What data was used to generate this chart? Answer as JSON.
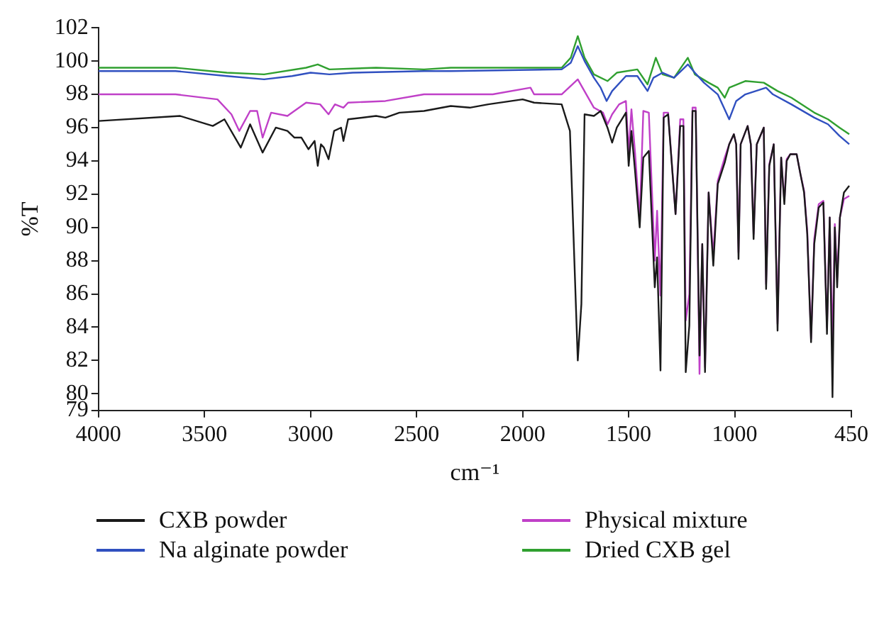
{
  "chart_data": {
    "type": "line",
    "xlabel": "cm⁻¹",
    "ylabel": "%T",
    "xlim": [
      4000,
      450
    ],
    "xticks": [
      4000,
      3500,
      3000,
      2500,
      2000,
      1500,
      1000,
      450
    ],
    "ylim": [
      79,
      102
    ],
    "yticks": [
      79,
      80,
      82,
      84,
      86,
      88,
      90,
      92,
      94,
      96,
      98,
      100,
      102
    ],
    "grid": false,
    "legend": "bottom",
    "marker": "none",
    "line_style": "solid",
    "series": [
      {
        "name": "CXB powder",
        "color": "#1a1a1a",
        "x": [
          4000,
          3615,
          3461,
          3406,
          3329,
          3285,
          3226,
          3164,
          3109,
          3076,
          3043,
          3010,
          2981,
          2966,
          2951,
          2937,
          2915,
          2889,
          2856,
          2845,
          2823,
          2691,
          2647,
          2581,
          2465,
          2339,
          2249,
          2162,
          2000,
          1946,
          1816,
          1777,
          1740,
          1723,
          1708,
          1664,
          1632,
          1600,
          1578,
          1556,
          1513,
          1500,
          1487,
          1470,
          1448,
          1431,
          1405,
          1377,
          1366,
          1350,
          1335,
          1314,
          1279,
          1257,
          1242,
          1231,
          1214,
          1199,
          1184,
          1166,
          1153,
          1140,
          1123,
          1101,
          1080,
          1047,
          1026,
          1004,
          993,
          982,
          972,
          939,
          924,
          911,
          896,
          863,
          852,
          837,
          816,
          798,
          781,
          766,
          755,
          738,
          708,
          690,
          673,
          658,
          640,
          625,
          604,
          582,
          565,
          552,
          539,
          528,
          517,
          504,
          485,
          460
        ],
        "values": [
          96.4,
          96.7,
          96.1,
          96.5,
          94.8,
          96.2,
          94.5,
          96.0,
          95.8,
          95.4,
          95.4,
          94.7,
          95.2,
          93.7,
          95.0,
          94.8,
          94.1,
          95.8,
          96.0,
          95.2,
          96.5,
          96.7,
          96.6,
          96.9,
          97.0,
          97.3,
          97.2,
          97.4,
          97.7,
          97.5,
          97.4,
          95.8,
          82.0,
          85.4,
          96.8,
          96.7,
          97.0,
          96.0,
          95.1,
          96.0,
          96.9,
          93.7,
          95.8,
          93.4,
          90.0,
          94.2,
          94.6,
          86.4,
          88.2,
          81.4,
          96.6,
          96.8,
          90.8,
          96.1,
          96.1,
          81.3,
          84.1,
          97.0,
          97.0,
          82.3,
          89.0,
          81.3,
          92.1,
          87.7,
          92.6,
          93.9,
          95.0,
          95.6,
          95.0,
          88.1,
          95.0,
          96.1,
          95.0,
          89.3,
          95.0,
          96.0,
          86.3,
          93.7,
          95.0,
          83.8,
          94.2,
          91.4,
          94.0,
          94.4,
          94.4,
          93.2,
          92.1,
          89.6,
          83.1,
          89.0,
          91.2,
          91.5,
          83.6,
          90.6,
          79.8,
          90.0,
          86.4,
          90.6,
          92.1,
          92.5
        ]
      },
      {
        "name": "Physical mixture",
        "color": "#c040c8",
        "x": [
          4000,
          3637,
          3439,
          3373,
          3336,
          3285,
          3252,
          3226,
          3186,
          3109,
          3087,
          3021,
          2955,
          2915,
          2885,
          2845,
          2823,
          2647,
          2465,
          2339,
          2141,
          1963,
          1946,
          1816,
          1740,
          1664,
          1621,
          1600,
          1578,
          1545,
          1513,
          1500,
          1487,
          1470,
          1448,
          1431,
          1405,
          1377,
          1366,
          1350,
          1335,
          1314,
          1279,
          1257,
          1242,
          1231,
          1214,
          1199,
          1184,
          1166,
          1153,
          1140,
          1123,
          1101,
          1080,
          1047,
          1026,
          1004,
          993,
          982,
          972,
          939,
          924,
          911,
          896,
          863,
          852,
          837,
          816,
          798,
          781,
          766,
          755,
          738,
          708,
          690,
          673,
          658,
          640,
          625,
          604,
          582,
          565,
          552,
          539,
          528,
          517,
          504,
          485,
          460
        ],
        "values": [
          98.0,
          98.0,
          97.7,
          96.8,
          95.8,
          97.0,
          97.0,
          95.4,
          96.9,
          96.7,
          96.9,
          97.5,
          97.4,
          96.8,
          97.4,
          97.2,
          97.5,
          97.6,
          98.0,
          98.0,
          98.0,
          98.4,
          98.0,
          98.0,
          98.9,
          97.2,
          96.9,
          96.2,
          96.8,
          97.4,
          97.6,
          94.5,
          97.1,
          94.5,
          90.5,
          97.0,
          96.9,
          88.0,
          91.0,
          85.9,
          96.9,
          96.9,
          90.8,
          96.5,
          96.5,
          84.4,
          86.0,
          97.2,
          97.2,
          81.2,
          89.0,
          81.6,
          92.1,
          88.3,
          92.8,
          94.2,
          95.0,
          95.6,
          95.0,
          88.5,
          95.0,
          96.1,
          95.0,
          89.6,
          95.0,
          96.0,
          86.6,
          93.8,
          95.0,
          84.2,
          94.2,
          91.6,
          94.1,
          94.4,
          94.4,
          93.2,
          92.2,
          89.8,
          83.3,
          89.3,
          91.4,
          91.6,
          84.0,
          90.6,
          82.8,
          90.2,
          87.0,
          90.6,
          91.7,
          91.9
        ]
      },
      {
        "name": "Na alginate powder",
        "color": "#3050c0",
        "x": [
          4000,
          3637,
          3395,
          3219,
          3087,
          3000,
          2911,
          2801,
          2465,
          2339,
          1816,
          1773,
          1740,
          1708,
          1664,
          1632,
          1604,
          1578,
          1513,
          1459,
          1411,
          1383,
          1340,
          1286,
          1221,
          1188,
          1145,
          1080,
          1026,
          993,
          950,
          852,
          820,
          733,
          625,
          560,
          506,
          460
        ],
        "values": [
          99.4,
          99.4,
          99.1,
          98.9,
          99.1,
          99.3,
          99.2,
          99.3,
          99.4,
          99.4,
          99.5,
          99.9,
          100.9,
          100.0,
          99.0,
          98.4,
          97.6,
          98.2,
          99.1,
          99.1,
          98.2,
          99.0,
          99.3,
          99.0,
          99.8,
          99.3,
          98.7,
          98.0,
          96.5,
          97.6,
          98.0,
          98.4,
          98.0,
          97.4,
          96.6,
          96.2,
          95.5,
          95.0
        ]
      },
      {
        "name": "Dried CXB gel",
        "color": "#30a030",
        "x": [
          4000,
          3637,
          3395,
          3219,
          3021,
          2966,
          2911,
          2691,
          2465,
          2339,
          1816,
          1773,
          1740,
          1708,
          1664,
          1600,
          1556,
          1459,
          1411,
          1372,
          1340,
          1286,
          1221,
          1188,
          1123,
          1080,
          1047,
          1026,
          950,
          863,
          798,
          733,
          625,
          560,
          506,
          460
        ],
        "values": [
          99.6,
          99.6,
          99.3,
          99.2,
          99.6,
          99.8,
          99.5,
          99.6,
          99.5,
          99.6,
          99.6,
          100.2,
          101.5,
          100.2,
          99.2,
          98.8,
          99.3,
          99.5,
          98.6,
          100.2,
          99.2,
          99.0,
          100.2,
          99.2,
          98.7,
          98.4,
          97.8,
          98.4,
          98.8,
          98.7,
          98.2,
          97.8,
          96.9,
          96.5,
          96.0,
          95.6
        ]
      }
    ]
  }
}
